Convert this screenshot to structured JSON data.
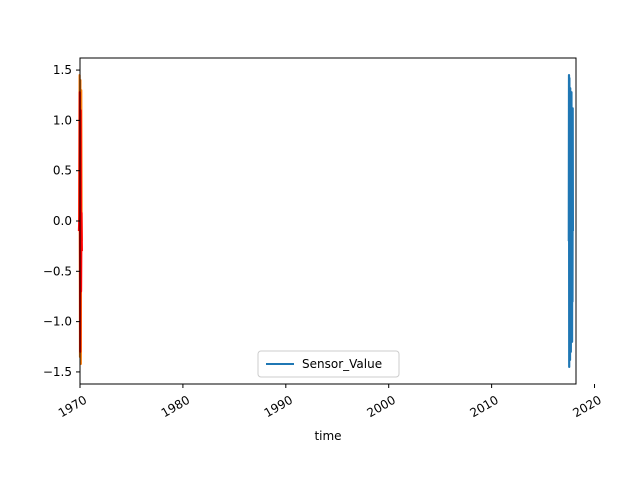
{
  "chart_data": {
    "type": "line",
    "title": "",
    "xlabel": "time",
    "ylabel": "",
    "xlim": [
      1970.0,
      2018.2
    ],
    "ylim": [
      -1.62,
      1.62
    ],
    "x_ticks": [
      "1970",
      "1980",
      "1990",
      "2000",
      "2010",
      "2020"
    ],
    "y_ticks": [
      "1.5",
      "1.0",
      "0.5",
      "0.0",
      "−0.5",
      "−1.0",
      "−1.5"
    ],
    "legend": {
      "placement": "lower center",
      "entries": [
        "Sensor_Value"
      ]
    },
    "grid": false,
    "series": [
      {
        "name": "Sensor_Value",
        "color": "#1f77b4",
        "x": [
          2017.5,
          2017.52,
          2017.54,
          2017.56,
          2017.58,
          2017.6,
          2017.62,
          2017.64,
          2017.66,
          2017.68,
          2017.7,
          2017.72,
          2017.74,
          2017.76,
          2017.78,
          2017.8,
          2017.82,
          2017.84,
          2017.86,
          2017.88,
          2017.9
        ],
        "values": [
          -0.2,
          1.45,
          -1.45,
          1.42,
          -1.2,
          1.3,
          -1.38,
          1.32,
          -0.9,
          1.25,
          -1.3,
          1.1,
          -1.1,
          1.28,
          -1.15,
          0.9,
          -1.2,
          1.1,
          -0.8,
          1.12,
          -0.1
        ]
      },
      {
        "name": "",
        "color": "#ff7f0e",
        "x": [
          1969.92,
          1969.96,
          1970.0,
          1970.04,
          1970.08,
          1970.12,
          1970.16
        ],
        "values": [
          0.0,
          1.45,
          -1.35,
          1.4,
          -1.42,
          1.3,
          -0.2
        ]
      },
      {
        "name": "",
        "color": "#ff0000",
        "x": [
          1969.9,
          1969.94,
          1969.98,
          1970.02,
          1970.06,
          1970.1,
          1970.14,
          1970.18
        ],
        "values": [
          -0.1,
          0.05,
          1.28,
          -1.3,
          1.1,
          -0.7,
          0.08,
          -0.3
        ]
      }
    ]
  }
}
